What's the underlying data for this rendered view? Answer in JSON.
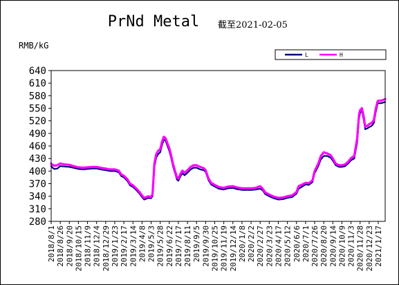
{
  "chart_data": {
    "type": "line",
    "title": "PrNd Metal",
    "subtitle": "截至2021-02-05",
    "ylabel": "RMB/kG",
    "ylim": [
      280,
      640
    ],
    "yticks": [
      280,
      310,
      340,
      370,
      400,
      430,
      460,
      490,
      520,
      550,
      580,
      610,
      640
    ],
    "xlim": [
      "2018-08-01",
      "2021-02-05"
    ],
    "xtick_labels": [
      "2018/8/1",
      "2018/8/26",
      "2018/9/20",
      "2018/10/15",
      "2018/11/9",
      "2018/12/4",
      "2018/12/29",
      "2019/1/23",
      "2019/2/17",
      "2019/3/14",
      "2019/4/8",
      "2019/5/3",
      "2019/5/28",
      "2019/6/22",
      "2019/7/17",
      "2019/8/11",
      "2019/9/5",
      "2019/9/30",
      "2019/10/25",
      "2019/11/19",
      "2019/12/14",
      "2020/1/8",
      "2020/2/2",
      "2020/2/27",
      "2020/3/23",
      "2020/4/17",
      "2020/5/12",
      "2020/6/6",
      "2020/7/1",
      "2020/7/26",
      "2020/8/20",
      "2020/9/14",
      "2020/10/9",
      "2020/11/3",
      "2020/11/28",
      "2020/12/23",
      "2021/1/17"
    ],
    "legend": {
      "position": "top-right"
    },
    "grid": false,
    "series": [
      {
        "name": "L",
        "color": "#000080",
        "points": [
          [
            "2018-08-01",
            412
          ],
          [
            "2018-08-05",
            408
          ],
          [
            "2018-08-10",
            405
          ],
          [
            "2018-08-18",
            406
          ],
          [
            "2018-08-26",
            412
          ],
          [
            "2018-09-05",
            411
          ],
          [
            "2018-09-20",
            410
          ],
          [
            "2018-10-01",
            408
          ],
          [
            "2018-10-15",
            405
          ],
          [
            "2018-10-28",
            404
          ],
          [
            "2018-11-09",
            405
          ],
          [
            "2018-11-22",
            406
          ],
          [
            "2018-12-04",
            406
          ],
          [
            "2018-12-15",
            404
          ],
          [
            "2018-12-29",
            402
          ],
          [
            "2019-01-10",
            400
          ],
          [
            "2019-01-23",
            400
          ],
          [
            "2019-02-03",
            397
          ],
          [
            "2019-02-10",
            388
          ],
          [
            "2019-02-17",
            385
          ],
          [
            "2019-02-27",
            376
          ],
          [
            "2019-03-06",
            366
          ],
          [
            "2019-03-14",
            362
          ],
          [
            "2019-03-24",
            354
          ],
          [
            "2019-04-01",
            346
          ],
          [
            "2019-04-08",
            338
          ],
          [
            "2019-04-14",
            332
          ],
          [
            "2019-04-20",
            334
          ],
          [
            "2019-04-25",
            336
          ],
          [
            "2019-05-03",
            335
          ],
          [
            "2019-05-07",
            340
          ],
          [
            "2019-05-12",
            410
          ],
          [
            "2019-05-17",
            432
          ],
          [
            "2019-05-22",
            440
          ],
          [
            "2019-05-28",
            445
          ],
          [
            "2019-06-02",
            462
          ],
          [
            "2019-06-07",
            475
          ],
          [
            "2019-06-12",
            472
          ],
          [
            "2019-06-17",
            460
          ],
          [
            "2019-06-22",
            448
          ],
          [
            "2019-06-27",
            432
          ],
          [
            "2019-07-02",
            412
          ],
          [
            "2019-07-08",
            395
          ],
          [
            "2019-07-13",
            380
          ],
          [
            "2019-07-17",
            377
          ],
          [
            "2019-07-23",
            388
          ],
          [
            "2019-07-28",
            395
          ],
          [
            "2019-08-03",
            390
          ],
          [
            "2019-08-11",
            396
          ],
          [
            "2019-08-20",
            404
          ],
          [
            "2019-08-28",
            408
          ],
          [
            "2019-09-05",
            408
          ],
          [
            "2019-09-15",
            404
          ],
          [
            "2019-09-25",
            402
          ],
          [
            "2019-09-30",
            398
          ],
          [
            "2019-10-08",
            378
          ],
          [
            "2019-10-15",
            368
          ],
          [
            "2019-10-25",
            363
          ],
          [
            "2019-11-05",
            358
          ],
          [
            "2019-11-19",
            356
          ],
          [
            "2019-12-01",
            359
          ],
          [
            "2019-12-14",
            360
          ],
          [
            "2019-12-25",
            357
          ],
          [
            "2020-01-08",
            355
          ],
          [
            "2020-01-20",
            355
          ],
          [
            "2020-02-02",
            355
          ],
          [
            "2020-02-15",
            356
          ],
          [
            "2020-02-27",
            358
          ],
          [
            "2020-03-05",
            354
          ],
          [
            "2020-03-12",
            345
          ],
          [
            "2020-03-23",
            340
          ],
          [
            "2020-04-05",
            335
          ],
          [
            "2020-04-17",
            332
          ],
          [
            "2020-04-30",
            333
          ],
          [
            "2020-05-12",
            336
          ],
          [
            "2020-05-25",
            338
          ],
          [
            "2020-06-06",
            346
          ],
          [
            "2020-06-12",
            358
          ],
          [
            "2020-06-20",
            362
          ],
          [
            "2020-07-01",
            368
          ],
          [
            "2020-07-10",
            367
          ],
          [
            "2020-07-20",
            374
          ],
          [
            "2020-07-26",
            395
          ],
          [
            "2020-08-05",
            412
          ],
          [
            "2020-08-12",
            428
          ],
          [
            "2020-08-20",
            436
          ],
          [
            "2020-08-30",
            436
          ],
          [
            "2020-09-08",
            432
          ],
          [
            "2020-09-14",
            425
          ],
          [
            "2020-09-22",
            414
          ],
          [
            "2020-10-01",
            410
          ],
          [
            "2020-10-09",
            410
          ],
          [
            "2020-10-18",
            412
          ],
          [
            "2020-10-26",
            418
          ],
          [
            "2020-11-03",
            426
          ],
          [
            "2020-11-12",
            430
          ],
          [
            "2020-11-20",
            468
          ],
          [
            "2020-11-25",
            525
          ],
          [
            "2020-11-28",
            538
          ],
          [
            "2020-12-03",
            545
          ],
          [
            "2020-12-08",
            522
          ],
          [
            "2020-12-12",
            500
          ],
          [
            "2020-12-18",
            502
          ],
          [
            "2020-12-23",
            505
          ],
          [
            "2020-12-30",
            508
          ],
          [
            "2021-01-05",
            515
          ],
          [
            "2021-01-10",
            540
          ],
          [
            "2021-01-15",
            560
          ],
          [
            "2021-01-17",
            562
          ],
          [
            "2021-01-25",
            562
          ],
          [
            "2021-02-05",
            565
          ]
        ]
      },
      {
        "name": "H",
        "color": "#ff00ff",
        "points": [
          [
            "2018-08-01",
            418
          ],
          [
            "2018-08-05",
            415
          ],
          [
            "2018-08-10",
            413
          ],
          [
            "2018-08-18",
            414
          ],
          [
            "2018-08-26",
            418
          ],
          [
            "2018-09-05",
            416
          ],
          [
            "2018-09-20",
            415
          ],
          [
            "2018-10-01",
            412
          ],
          [
            "2018-10-15",
            409
          ],
          [
            "2018-10-28",
            408
          ],
          [
            "2018-11-09",
            409
          ],
          [
            "2018-11-22",
            410
          ],
          [
            "2018-12-04",
            410
          ],
          [
            "2018-12-15",
            408
          ],
          [
            "2018-12-29",
            406
          ],
          [
            "2019-01-10",
            404
          ],
          [
            "2019-01-23",
            404
          ],
          [
            "2019-02-03",
            401
          ],
          [
            "2019-02-10",
            392
          ],
          [
            "2019-02-17",
            389
          ],
          [
            "2019-02-27",
            380
          ],
          [
            "2019-03-06",
            370
          ],
          [
            "2019-03-14",
            366
          ],
          [
            "2019-03-24",
            358
          ],
          [
            "2019-04-01",
            350
          ],
          [
            "2019-04-08",
            342
          ],
          [
            "2019-04-14",
            336
          ],
          [
            "2019-04-20",
            338
          ],
          [
            "2019-04-25",
            340
          ],
          [
            "2019-05-03",
            338
          ],
          [
            "2019-05-07",
            345
          ],
          [
            "2019-05-12",
            418
          ],
          [
            "2019-05-17",
            440
          ],
          [
            "2019-05-22",
            448
          ],
          [
            "2019-05-28",
            452
          ],
          [
            "2019-06-02",
            470
          ],
          [
            "2019-06-07",
            482
          ],
          [
            "2019-06-12",
            478
          ],
          [
            "2019-06-17",
            466
          ],
          [
            "2019-06-22",
            455
          ],
          [
            "2019-06-27",
            438
          ],
          [
            "2019-07-02",
            418
          ],
          [
            "2019-07-08",
            400
          ],
          [
            "2019-07-13",
            385
          ],
          [
            "2019-07-17",
            382
          ],
          [
            "2019-07-23",
            394
          ],
          [
            "2019-07-28",
            401
          ],
          [
            "2019-08-03",
            396
          ],
          [
            "2019-08-11",
            402
          ],
          [
            "2019-08-20",
            410
          ],
          [
            "2019-08-28",
            414
          ],
          [
            "2019-09-05",
            414
          ],
          [
            "2019-09-15",
            410
          ],
          [
            "2019-09-25",
            407
          ],
          [
            "2019-09-30",
            402
          ],
          [
            "2019-10-08",
            382
          ],
          [
            "2019-10-15",
            372
          ],
          [
            "2019-10-25",
            367
          ],
          [
            "2019-11-05",
            362
          ],
          [
            "2019-11-19",
            360
          ],
          [
            "2019-12-01",
            363
          ],
          [
            "2019-12-14",
            364
          ],
          [
            "2019-12-25",
            361
          ],
          [
            "2020-01-08",
            359
          ],
          [
            "2020-01-20",
            359
          ],
          [
            "2020-02-02",
            359
          ],
          [
            "2020-02-15",
            360
          ],
          [
            "2020-02-27",
            364
          ],
          [
            "2020-03-05",
            358
          ],
          [
            "2020-03-12",
            349
          ],
          [
            "2020-03-23",
            344
          ],
          [
            "2020-04-05",
            339
          ],
          [
            "2020-04-17",
            336
          ],
          [
            "2020-04-30",
            337
          ],
          [
            "2020-05-12",
            340
          ],
          [
            "2020-05-25",
            342
          ],
          [
            "2020-06-06",
            350
          ],
          [
            "2020-06-12",
            364
          ],
          [
            "2020-06-20",
            367
          ],
          [
            "2020-07-01",
            372
          ],
          [
            "2020-07-10",
            371
          ],
          [
            "2020-07-20",
            378
          ],
          [
            "2020-07-26",
            400
          ],
          [
            "2020-08-05",
            418
          ],
          [
            "2020-08-12",
            436
          ],
          [
            "2020-08-20",
            445
          ],
          [
            "2020-08-30",
            442
          ],
          [
            "2020-09-08",
            438
          ],
          [
            "2020-09-14",
            430
          ],
          [
            "2020-09-22",
            418
          ],
          [
            "2020-10-01",
            414
          ],
          [
            "2020-10-09",
            414
          ],
          [
            "2020-10-18",
            416
          ],
          [
            "2020-10-26",
            422
          ],
          [
            "2020-11-03",
            431
          ],
          [
            "2020-11-12",
            436
          ],
          [
            "2020-11-20",
            478
          ],
          [
            "2020-11-25",
            535
          ],
          [
            "2020-11-28",
            545
          ],
          [
            "2020-12-03",
            550
          ],
          [
            "2020-12-08",
            530
          ],
          [
            "2020-12-12",
            506
          ],
          [
            "2020-12-18",
            508
          ],
          [
            "2020-12-23",
            512
          ],
          [
            "2020-12-30",
            515
          ],
          [
            "2021-01-05",
            522
          ],
          [
            "2021-01-10",
            548
          ],
          [
            "2021-01-15",
            566
          ],
          [
            "2021-01-17",
            568
          ],
          [
            "2021-01-25",
            568
          ],
          [
            "2021-02-05",
            572
          ]
        ]
      }
    ]
  }
}
